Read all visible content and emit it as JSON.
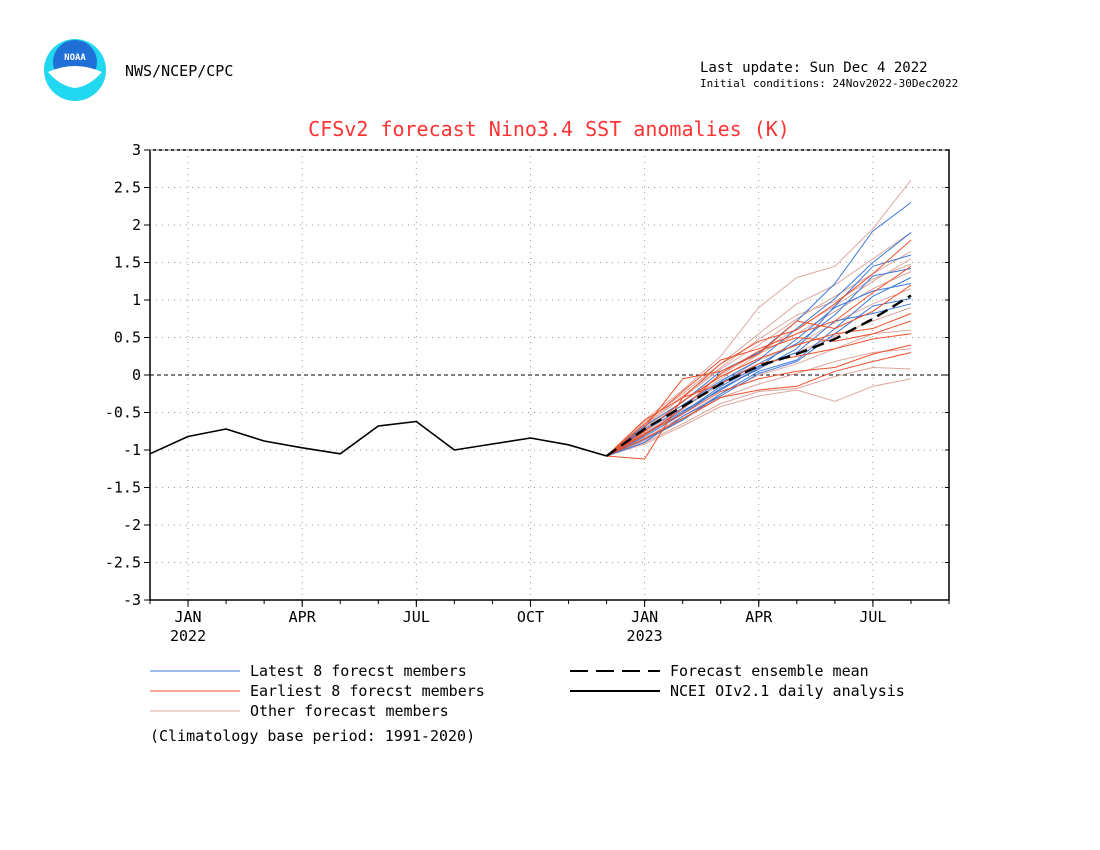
{
  "header": {
    "agency": "NWS/NCEP/CPC",
    "logo_text": "NOAA",
    "last_update": "Last update: Sun Dec 4 2022",
    "initial_conditions": "Initial conditions: 24Nov2022-30Dec2022"
  },
  "footer": {
    "climatology_note": "(Climatology base period: 1991-2020)"
  },
  "colors": {
    "title": "#ff3333",
    "latest": "#3c78d8",
    "earliest": "#f0502a",
    "other": "#dca8a0",
    "ensemble_mean": "#000000",
    "analysis": "#000000",
    "logo_blue": "#1f6fd6",
    "logo_cyan": "#22d8f0"
  },
  "chart_data": {
    "type": "line",
    "title": "CFSv2 forecast Nino3.4 SST anomalies (K)",
    "xlim": [
      -1,
      20
    ],
    "ylim": [
      -3,
      3
    ],
    "yticks": [
      -3,
      -2.5,
      -2,
      -1.5,
      -1,
      -0.5,
      0,
      0.5,
      1,
      1.5,
      2,
      2.5,
      3
    ],
    "ytick_labels": [
      "-3",
      "-2.5",
      "-2",
      "-1.5",
      "-1",
      "-0.5",
      "0",
      "0.5",
      "1",
      "1.5",
      "2",
      "2.5",
      "3"
    ],
    "xticks": [
      {
        "x": 0,
        "month": "JAN",
        "year": "2022"
      },
      {
        "x": 3,
        "month": "APR",
        "year": ""
      },
      {
        "x": 6,
        "month": "JUL",
        "year": ""
      },
      {
        "x": 9,
        "month": "OCT",
        "year": ""
      },
      {
        "x": 12,
        "month": "JAN",
        "year": "2023"
      },
      {
        "x": 15,
        "month": "APR",
        "year": ""
      },
      {
        "x": 18,
        "month": "JUL",
        "year": ""
      }
    ],
    "grid": true,
    "zero_line": true,
    "legend_items": [
      {
        "label": "Latest 8 forecst members",
        "style": "latest"
      },
      {
        "label": "Earliest 8 forecst members",
        "style": "earliest"
      },
      {
        "label": "Other forecast members",
        "style": "other"
      },
      {
        "label": "Forecast ensemble mean",
        "style": "ensemble_mean"
      },
      {
        "label": "NCEI OIv2.1 daily analysis",
        "style": "analysis"
      }
    ],
    "analysis": {
      "x": [
        -1,
        0,
        1,
        2,
        3,
        4,
        5,
        6,
        7,
        8,
        9,
        10,
        11
      ],
      "y": [
        -1.05,
        -0.82,
        -0.72,
        -0.88,
        -0.97,
        -1.05,
        -0.68,
        -0.62,
        -1.0,
        -0.92,
        -0.84,
        -0.93,
        -1.08
      ]
    },
    "ensemble_mean": {
      "x": [
        11,
        12,
        13,
        14,
        15,
        16,
        17,
        18,
        19
      ],
      "y": [
        -1.08,
        -0.72,
        -0.42,
        -0.12,
        0.12,
        0.28,
        0.48,
        0.75,
        1.06
      ]
    },
    "member_x": [
      11,
      12,
      13,
      14,
      15,
      16,
      17,
      18,
      19
    ],
    "members_latest": [
      [
        -1.08,
        -0.68,
        -0.36,
        0.05,
        0.3,
        0.72,
        1.22,
        1.92,
        2.3
      ],
      [
        -1.08,
        -0.72,
        -0.4,
        -0.08,
        0.2,
        0.62,
        1.02,
        1.5,
        1.9
      ],
      [
        -1.08,
        -0.82,
        -0.52,
        -0.18,
        0.08,
        0.35,
        0.92,
        1.45,
        1.6
      ],
      [
        -1.08,
        -0.74,
        -0.44,
        -0.1,
        0.15,
        0.42,
        0.8,
        1.32,
        1.42
      ],
      [
        -1.08,
        -0.86,
        -0.6,
        -0.25,
        0.05,
        0.2,
        0.62,
        1.05,
        1.3
      ],
      [
        -1.08,
        -0.78,
        -0.48,
        -0.2,
        0.1,
        0.48,
        0.9,
        1.12,
        1.22
      ],
      [
        -1.08,
        -0.9,
        -0.55,
        -0.28,
        0.02,
        0.18,
        0.55,
        0.92,
        1.02
      ],
      [
        -1.08,
        -0.8,
        -0.5,
        -0.15,
        0.12,
        0.3,
        0.72,
        0.82,
        0.95
      ]
    ],
    "members_earliest": [
      [
        -1.08,
        -0.6,
        -0.3,
        0.15,
        0.45,
        0.6,
        0.95,
        1.35,
        1.8
      ],
      [
        -1.08,
        -0.65,
        -0.22,
        0.2,
        0.35,
        0.55,
        0.72,
        1.1,
        1.45
      ],
      [
        -1.08,
        -0.7,
        -0.05,
        0.05,
        0.28,
        0.72,
        0.62,
        0.85,
        1.2
      ],
      [
        -1.08,
        -0.75,
        -0.35,
        -0.02,
        0.22,
        0.4,
        0.55,
        0.62,
        0.82
      ],
      [
        -1.08,
        -0.8,
        -0.45,
        0.02,
        0.32,
        0.5,
        0.45,
        0.55,
        0.72
      ],
      [
        -1.08,
        -1.12,
        -0.3,
        -0.12,
        0.15,
        0.25,
        0.35,
        0.48,
        0.55
      ],
      [
        -1.08,
        -0.78,
        -0.52,
        -0.22,
        -0.05,
        0.05,
        0.1,
        0.28,
        0.4
      ],
      [
        -1.08,
        -0.85,
        -0.58,
        -0.3,
        -0.2,
        -0.15,
        0.05,
        0.18,
        0.3
      ]
    ],
    "members_other": [
      [
        -1.08,
        -0.6,
        -0.2,
        0.25,
        0.9,
        1.3,
        1.45,
        1.95,
        2.6
      ],
      [
        -1.08,
        -0.62,
        -0.25,
        0.15,
        0.55,
        0.95,
        1.2,
        1.55,
        1.9
      ],
      [
        -1.08,
        -0.68,
        -0.3,
        0.08,
        0.4,
        0.75,
        1.05,
        1.35,
        1.65
      ],
      [
        -1.08,
        -0.72,
        -0.4,
        -0.05,
        0.28,
        0.55,
        0.85,
        1.15,
        1.38
      ],
      [
        -1.08,
        -0.76,
        -0.45,
        -0.12,
        0.2,
        0.4,
        0.7,
        0.95,
        1.15
      ],
      [
        -1.08,
        -0.8,
        -0.5,
        -0.18,
        0.1,
        0.3,
        0.52,
        0.72,
        0.9
      ],
      [
        -1.08,
        -0.84,
        -0.55,
        -0.25,
        0.0,
        0.15,
        0.35,
        0.55,
        0.6
      ],
      [
        -1.08,
        -0.88,
        -0.6,
        -0.3,
        -0.12,
        0.02,
        0.18,
        0.3,
        0.35
      ],
      [
        -1.08,
        -0.9,
        -0.65,
        -0.38,
        -0.22,
        -0.18,
        -0.02,
        0.1,
        0.08
      ],
      [
        -1.08,
        -0.92,
        -0.68,
        -0.42,
        -0.28,
        -0.2,
        -0.35,
        -0.15,
        -0.05
      ],
      [
        -1.08,
        -0.7,
        -0.35,
        0.0,
        0.3,
        0.62,
        0.92,
        1.25,
        1.55
      ],
      [
        -1.08,
        -0.66,
        -0.28,
        0.1,
        0.48,
        0.8,
        0.98,
        1.28,
        1.48
      ]
    ]
  }
}
